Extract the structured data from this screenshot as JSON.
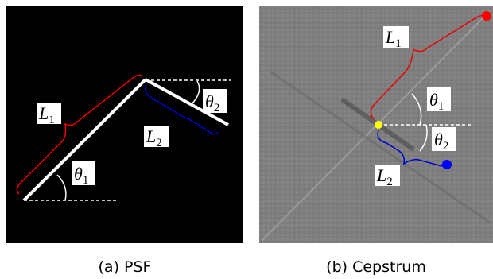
{
  "panels": [
    {
      "caption": "(a) PSF",
      "labels": [
        {
          "symbol": "L",
          "subscript": "1"
        },
        {
          "symbol": "θ",
          "subscript": "1"
        },
        {
          "symbol": "θ",
          "subscript": "2"
        },
        {
          "symbol": "L",
          "subscript": "2"
        }
      ]
    },
    {
      "caption": "(b) Cepstrum",
      "labels": [
        {
          "symbol": "L",
          "subscript": "1"
        },
        {
          "symbol": "θ",
          "subscript": "1"
        },
        {
          "symbol": "θ",
          "subscript": "2"
        },
        {
          "symbol": "L",
          "subscript": "2"
        }
      ]
    }
  ]
}
